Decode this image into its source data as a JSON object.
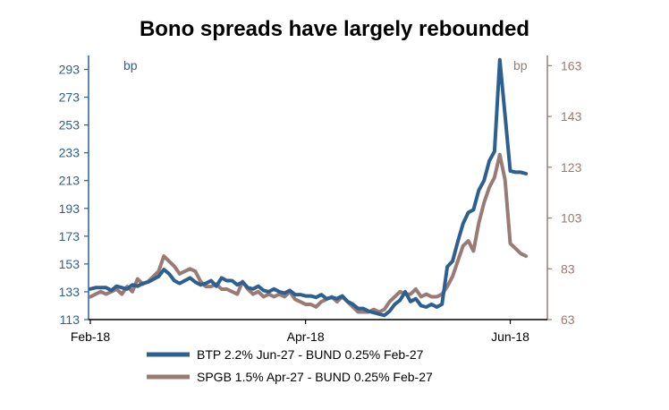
{
  "chart_data": {
    "type": "line",
    "title": "Bono spreads have largely rebounded",
    "x_ticks": [
      "Feb-18",
      "Apr-18",
      "Jun-18"
    ],
    "x_tick_positions": [
      0,
      41,
      80
    ],
    "x_range": [
      0,
      84
    ],
    "left_axis": {
      "unit_label": "bp",
      "range": [
        113,
        303
      ],
      "ticks": [
        113,
        133,
        153,
        173,
        193,
        213,
        233,
        253,
        273,
        293
      ],
      "color": "#2e5f91"
    },
    "right_axis": {
      "unit_label": "bp",
      "range": [
        63,
        167
      ],
      "ticks": [
        63,
        83,
        103,
        123,
        143,
        163
      ],
      "color": "#9a7a74"
    },
    "series": [
      {
        "name": "BTP 2.2% Jun-27 - BUND 0.25% Feb-27",
        "axis": "left",
        "color": "#2e5f91",
        "x": [
          0,
          1,
          2,
          3,
          4,
          5,
          6,
          7,
          8,
          9,
          10,
          11,
          12,
          13,
          14,
          15,
          16,
          17,
          18,
          19,
          20,
          21,
          22,
          23,
          24,
          25,
          26,
          27,
          28,
          29,
          30,
          31,
          32,
          33,
          34,
          35,
          36,
          37,
          38,
          39,
          40,
          41,
          42,
          43,
          44,
          45,
          46,
          47,
          48,
          49,
          50,
          51,
          52,
          53,
          54,
          55,
          56,
          57,
          58,
          59,
          60,
          61,
          62,
          63,
          64,
          65,
          66,
          67,
          68,
          69,
          70,
          71,
          72,
          73,
          74,
          75,
          76,
          77,
          78,
          79,
          80,
          81,
          82,
          83
        ],
        "values": [
          135,
          136,
          136,
          136,
          134,
          137,
          136,
          135,
          138,
          137,
          139,
          140,
          142,
          144,
          149,
          146,
          141,
          139,
          141,
          143,
          140,
          138,
          139,
          141,
          137,
          143,
          141,
          141,
          138,
          140,
          136,
          135,
          137,
          134,
          133,
          135,
          133,
          132,
          134,
          131,
          131,
          130,
          130,
          129,
          131,
          128,
          129,
          128,
          130,
          126,
          124,
          121,
          121,
          119,
          118,
          117,
          116,
          119,
          124,
          127,
          133,
          126,
          128,
          123,
          122,
          124,
          122,
          124,
          151,
          155,
          169,
          182,
          190,
          192,
          206,
          213,
          227,
          234,
          300,
          260,
          220,
          219,
          219,
          218
        ]
      },
      {
        "name": "SPGB 1.5% Apr-27 - BUND 0.25% Feb-27",
        "axis": "right",
        "color": "#9a7a74",
        "x": [
          0,
          1,
          2,
          3,
          4,
          5,
          6,
          7,
          8,
          9,
          10,
          11,
          12,
          13,
          14,
          15,
          16,
          17,
          18,
          19,
          20,
          21,
          22,
          23,
          24,
          25,
          26,
          27,
          28,
          29,
          30,
          31,
          32,
          33,
          34,
          35,
          36,
          37,
          38,
          39,
          40,
          41,
          42,
          43,
          44,
          45,
          46,
          47,
          48,
          49,
          50,
          51,
          52,
          53,
          54,
          55,
          56,
          57,
          58,
          59,
          60,
          61,
          62,
          63,
          64,
          65,
          66,
          67,
          68,
          69,
          70,
          71,
          72,
          73,
          74,
          75,
          76,
          77,
          78,
          79,
          80,
          81,
          82,
          83
        ],
        "values": [
          72,
          73,
          74,
          73,
          74,
          75,
          73,
          76,
          74,
          79,
          77,
          78,
          80,
          82,
          88,
          86,
          84,
          81,
          82,
          83,
          82,
          78,
          76,
          76,
          77,
          75,
          75,
          74,
          73,
          78,
          75,
          73,
          74,
          72,
          73,
          72,
          73,
          72,
          74,
          71,
          70,
          69,
          69,
          68,
          70,
          71,
          72,
          70,
          72,
          70,
          68,
          66,
          66,
          66,
          67,
          66,
          67,
          70,
          72,
          74,
          73,
          73,
          75,
          72,
          73,
          72,
          72,
          73,
          76,
          80,
          86,
          92,
          94,
          90,
          101,
          109,
          115,
          119,
          128,
          118,
          93,
          91,
          89,
          88
        ]
      }
    ]
  }
}
